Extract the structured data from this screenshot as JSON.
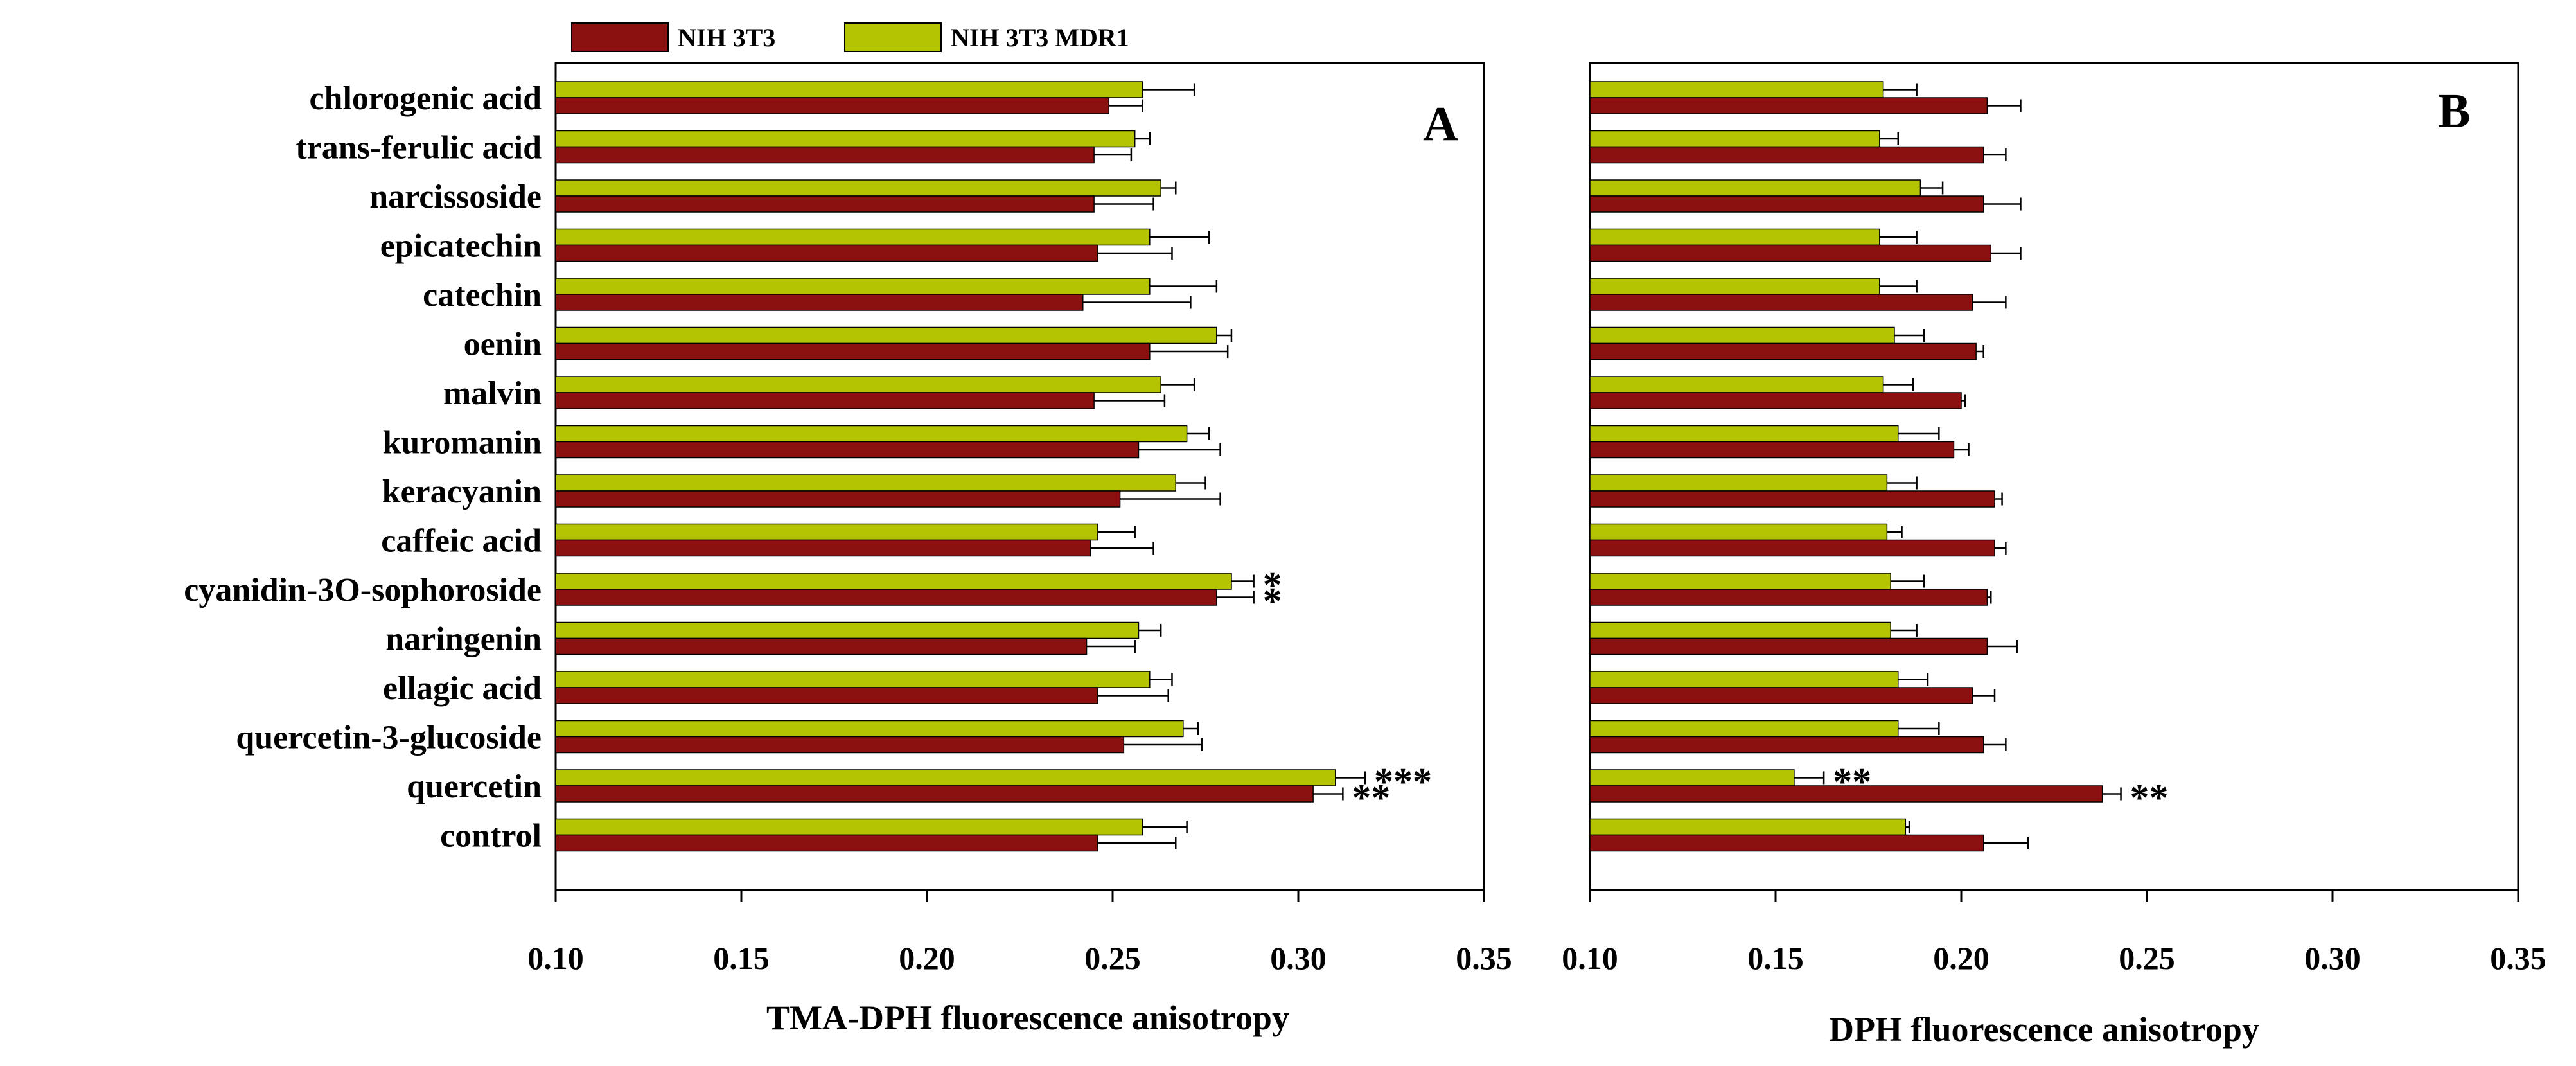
{
  "legend": [
    {
      "name": "NIH 3T3",
      "color": "#8b1010"
    },
    {
      "name": "NIH 3T3 MDR1",
      "color": "#b4c400"
    }
  ],
  "categories": [
    "chlorogenic acid",
    "trans-ferulic acid",
    "narcissoside",
    "epicatechin",
    "catechin",
    "oenin",
    "malvin",
    "kuromanin",
    "keracyanin",
    "caffeic acid",
    "cyanidin-3O-sophoroside",
    "naringenin",
    "ellagic acid",
    "quercetin-3-glucoside",
    "quercetin",
    "control"
  ],
  "chart_data": [
    {
      "type": "bar",
      "orientation": "horizontal",
      "panel": "A",
      "xlabel": "TMA-DPH fluorescence anisotropy",
      "xlim": [
        0.1,
        0.35
      ],
      "xticks": [
        "0.10",
        "0.15",
        "0.20",
        "0.25",
        "0.30",
        "0.35"
      ],
      "xtick_values": [
        0.1,
        0.15,
        0.2,
        0.25,
        0.3,
        0.35
      ],
      "categories": [
        "chlorogenic acid",
        "trans-ferulic acid",
        "narcissoside",
        "epicatechin",
        "catechin",
        "oenin",
        "malvin",
        "kuromanin",
        "keracyanin",
        "caffeic acid",
        "cyanidin-3O-sophoroside",
        "naringenin",
        "ellagic acid",
        "quercetin-3-glucoside",
        "quercetin",
        "control"
      ],
      "series": [
        {
          "name": "NIH 3T3 MDR1",
          "color": "#b4c400",
          "values": [
            0.258,
            0.256,
            0.263,
            0.26,
            0.26,
            0.278,
            0.263,
            0.27,
            0.267,
            0.246,
            0.282,
            0.257,
            0.26,
            0.269,
            0.31,
            0.258
          ],
          "errors": [
            0.014,
            0.004,
            0.004,
            0.016,
            0.018,
            0.004,
            0.009,
            0.006,
            0.008,
            0.01,
            0.006,
            0.006,
            0.006,
            0.004,
            0.008,
            0.012
          ],
          "annotations": [
            "",
            "",
            "",
            "",
            "",
            "",
            "",
            "",
            "",
            "",
            "*",
            "",
            "",
            "",
            "***",
            ""
          ]
        },
        {
          "name": "NIH 3T3",
          "color": "#8b1010",
          "values": [
            0.249,
            0.245,
            0.245,
            0.246,
            0.242,
            0.26,
            0.245,
            0.257,
            0.252,
            0.244,
            0.278,
            0.243,
            0.246,
            0.253,
            0.304,
            0.246
          ],
          "errors": [
            0.009,
            0.01,
            0.016,
            0.02,
            0.029,
            0.021,
            0.019,
            0.022,
            0.027,
            0.017,
            0.01,
            0.013,
            0.019,
            0.021,
            0.008,
            0.021
          ],
          "annotations": [
            "",
            "",
            "",
            "",
            "",
            "",
            "",
            "",
            "",
            "",
            "*",
            "",
            "",
            "",
            "**",
            ""
          ]
        }
      ]
    },
    {
      "type": "bar",
      "orientation": "horizontal",
      "panel": "B",
      "xlabel": "DPH fluorescence anisotropy",
      "xlim": [
        0.1,
        0.35
      ],
      "xticks": [
        "0.10",
        "0.15",
        "0.20",
        "0.25",
        "0.30",
        "0.35"
      ],
      "xtick_values": [
        0.1,
        0.15,
        0.2,
        0.25,
        0.3,
        0.35
      ],
      "categories": [
        "chlorogenic acid",
        "trans-ferulic acid",
        "narcissoside",
        "epicatechin",
        "catechin",
        "oenin",
        "malvin",
        "kuromanin",
        "keracyanin",
        "caffeic acid",
        "cyanidin-3O-sophoroside",
        "naringenin",
        "ellagic acid",
        "quercetin-3-glucoside",
        "quercetin",
        "control"
      ],
      "series": [
        {
          "name": "NIH 3T3 MDR1",
          "color": "#b4c400",
          "values": [
            0.179,
            0.178,
            0.189,
            0.178,
            0.178,
            0.182,
            0.179,
            0.183,
            0.18,
            0.18,
            0.181,
            0.181,
            0.183,
            0.183,
            0.155,
            0.185
          ],
          "errors": [
            0.009,
            0.005,
            0.006,
            0.01,
            0.01,
            0.008,
            0.008,
            0.011,
            0.008,
            0.004,
            0.009,
            0.007,
            0.008,
            0.011,
            0.008,
            0.001
          ],
          "annotations": [
            "",
            "",
            "",
            "",
            "",
            "",
            "",
            "",
            "",
            "",
            "",
            "",
            "",
            "",
            "**",
            ""
          ]
        },
        {
          "name": "NIH 3T3",
          "color": "#8b1010",
          "values": [
            0.207,
            0.206,
            0.206,
            0.208,
            0.203,
            0.204,
            0.2,
            0.198,
            0.209,
            0.209,
            0.207,
            0.207,
            0.203,
            0.206,
            0.238,
            0.206
          ],
          "errors": [
            0.009,
            0.006,
            0.01,
            0.008,
            0.009,
            0.002,
            0.001,
            0.004,
            0.002,
            0.003,
            0.001,
            0.008,
            0.006,
            0.006,
            0.005,
            0.012
          ],
          "annotations": [
            "",
            "",
            "",
            "",
            "",
            "",
            "",
            "",
            "",
            "",
            "",
            "",
            "",
            "",
            "**",
            ""
          ]
        }
      ]
    }
  ]
}
